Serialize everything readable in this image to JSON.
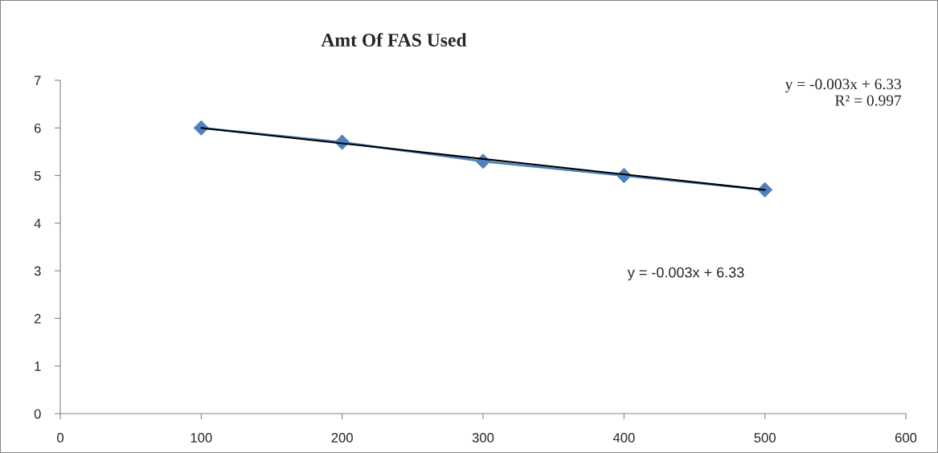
{
  "chart_data": {
    "type": "line",
    "title": "Amt Of FAS Used",
    "series": [
      {
        "color": "#4f81bd",
        "marker": "diamond",
        "x": [
          100,
          200,
          300,
          400,
          500
        ],
        "values": [
          6.0,
          5.7,
          5.3,
          5.0,
          4.7
        ]
      },
      {
        "color": "#000000",
        "marker": "none",
        "x": [
          100,
          500
        ],
        "values": [
          6.0,
          4.7
        ]
      }
    ],
    "xlim": [
      0,
      600
    ],
    "xticks": [
      0,
      100,
      200,
      300,
      400,
      500,
      600
    ],
    "ylim": [
      0,
      7
    ],
    "yticks": [
      0,
      1,
      2,
      3,
      4,
      5,
      6,
      7
    ],
    "grid": false,
    "legend": false,
    "annotations": [
      "y = -0.003x + 6.33\nR² = 0.997",
      "y = -0.003x + 6.33"
    ]
  }
}
